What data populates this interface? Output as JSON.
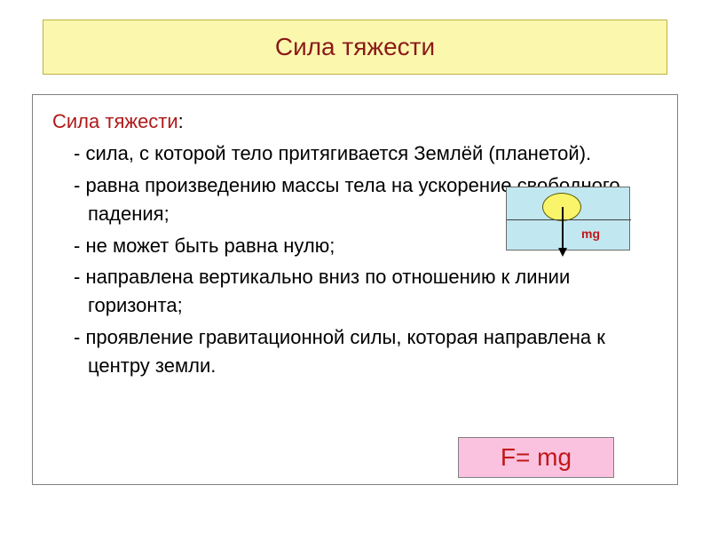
{
  "title": {
    "text": "Сила тяжести",
    "background": "#fbf8ae",
    "border": "#c0b040",
    "color": "#8a1a1a",
    "fontsize": 28
  },
  "content": {
    "heading": "Сила тяжести",
    "heading_color": "#b01818",
    "text_color": "#000000",
    "fontsize": 22,
    "bullets": [
      "сила, с которой тело притягивается Землёй (планетой).",
      "равна произведению массы тела на ускорение свободного падения;",
      "не может быть равна нулю;",
      "направлена вертикально вниз по отношению к линии горизонта;",
      "проявление гравитационной силы, которая направлена к центру земли."
    ]
  },
  "diagram": {
    "background": "#c1e7f0",
    "ellipse_fill": "#f9f46a",
    "mg_label": "mg",
    "mg_color": "#c01818"
  },
  "formula": {
    "text": "F= mg",
    "background": "#fbc2e0",
    "color": "#c01818",
    "fontsize": 28
  }
}
